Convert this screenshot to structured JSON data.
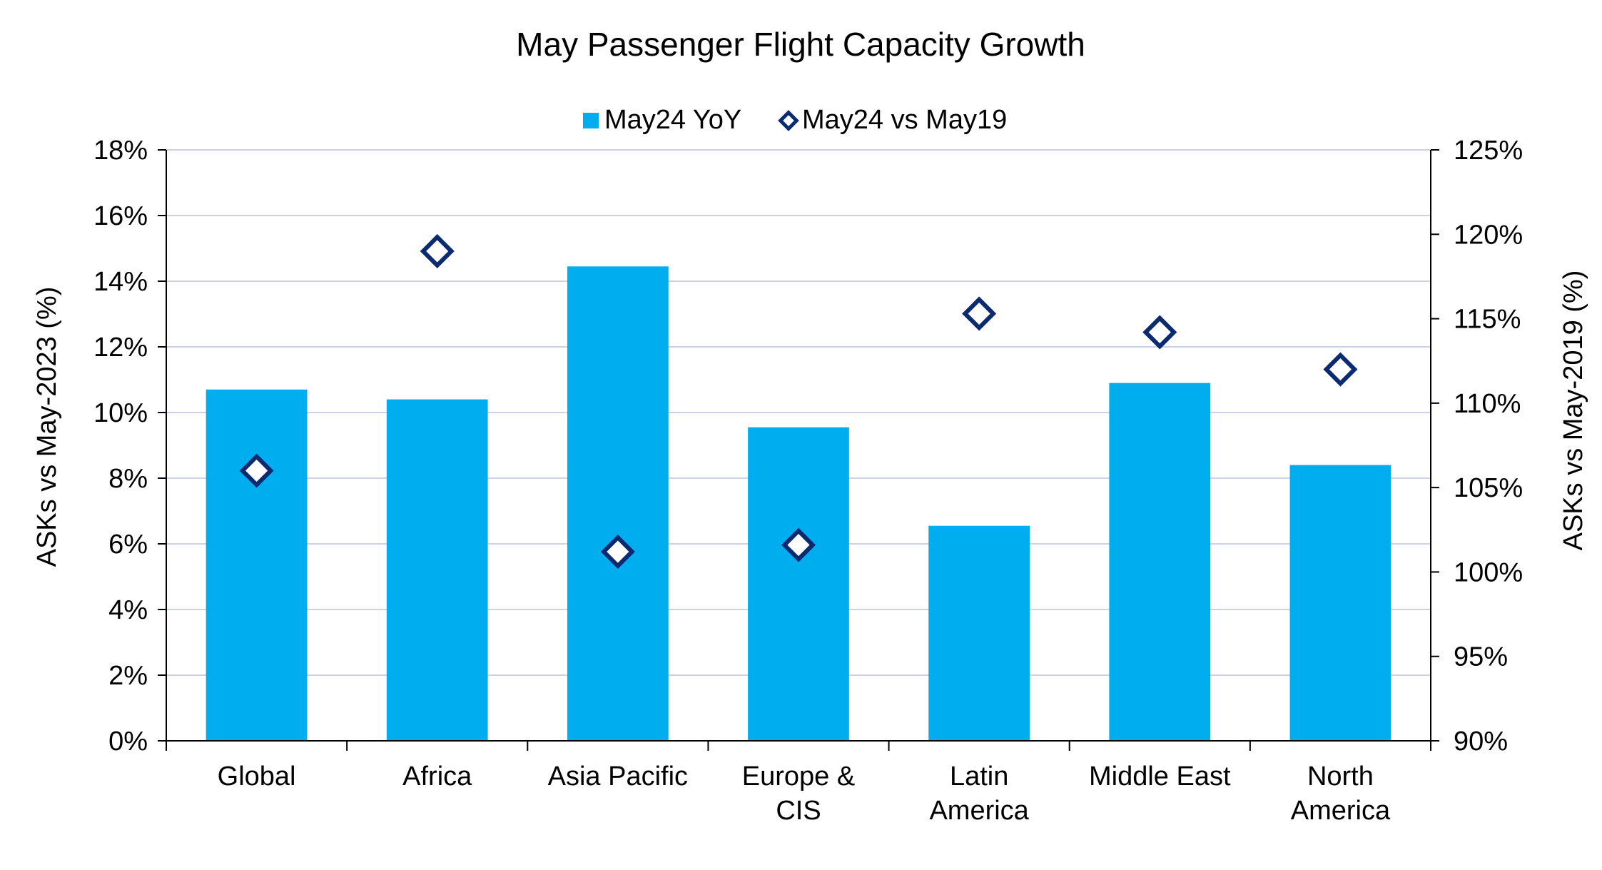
{
  "chart_data": {
    "type": "bar",
    "title": "May Passenger Flight Capacity Growth",
    "categories": [
      [
        "Global"
      ],
      [
        "Africa"
      ],
      [
        "Asia Pacific"
      ],
      [
        "Europe &",
        "CIS"
      ],
      [
        "Latin",
        "America"
      ],
      [
        "Middle East"
      ],
      [
        "North",
        "America"
      ]
    ],
    "series": [
      {
        "name": "May24 YoY",
        "kind": "bar",
        "axis": "left",
        "color": "#00AEEF",
        "values": [
          10.7,
          10.4,
          14.45,
          9.55,
          6.55,
          10.9,
          8.4
        ]
      },
      {
        "name": "May24 vs May19",
        "kind": "marker",
        "marker": "diamond",
        "axis": "right",
        "color": "#0B2A6F",
        "values": [
          106.0,
          119.0,
          101.2,
          101.6,
          115.3,
          114.2,
          112.0
        ]
      }
    ],
    "y_left": {
      "label": "ASKs vs May-2023 (%)",
      "min": 0,
      "max": 18,
      "ticks": [
        0,
        2,
        4,
        6,
        8,
        10,
        12,
        14,
        16,
        18
      ],
      "tick_labels": [
        "0%",
        "2%",
        "4%",
        "6%",
        "8%",
        "10%",
        "12%",
        "14%",
        "16%",
        "18%"
      ]
    },
    "y_right": {
      "label": "ASKs vs May-2019 (%)",
      "min": 90,
      "max": 125,
      "ticks": [
        90,
        95,
        100,
        105,
        110,
        115,
        120,
        125
      ],
      "tick_labels": [
        "90%",
        "95%",
        "100%",
        "105%",
        "110%",
        "115%",
        "120%",
        "125%"
      ]
    },
    "grid": true,
    "legend_position": "top-center"
  }
}
